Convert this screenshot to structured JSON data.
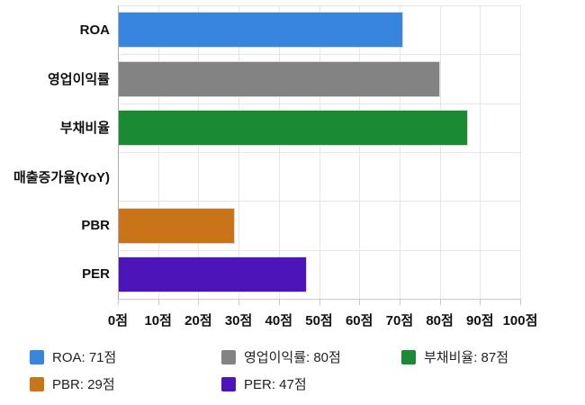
{
  "chart_data": {
    "type": "bar",
    "orientation": "horizontal",
    "title": "",
    "categories": [
      "ROA",
      "영업이익률",
      "부채비율",
      "매출증가율(YoY)",
      "PBR",
      "PER"
    ],
    "category_keys": [
      "roa",
      "operating-margin",
      "debt-ratio",
      "revenue-growth-yoy",
      "pbr",
      "per"
    ],
    "values": [
      71,
      80,
      87,
      0,
      29,
      47
    ],
    "value_unit": "점",
    "bar_colors": [
      "#3885e0",
      "#838383",
      "#1a8a34",
      null,
      "#c97418",
      "#4d15b9"
    ],
    "xlim": [
      0,
      100
    ],
    "x_tick_step": 10,
    "x_tick_labels": [
      "0점",
      "10점",
      "20점",
      "30점",
      "40점",
      "50점",
      "60점",
      "70점",
      "80점",
      "90점",
      "100점"
    ],
    "grid": true,
    "legend_position": "bottom"
  },
  "legend": {
    "items": [
      {
        "key": "roa",
        "label": "ROA: 71점",
        "color": "#3885e0"
      },
      {
        "key": "operating-margin",
        "label": "영업이익률: 80점",
        "color": "#838383"
      },
      {
        "key": "debt-ratio",
        "label": "부채비율: 87점",
        "color": "#1a8a34"
      },
      {
        "key": "pbr",
        "label": "PBR: 29점",
        "color": "#c97418"
      },
      {
        "key": "per",
        "label": "PER: 47점",
        "color": "#4d15b9"
      }
    ]
  }
}
